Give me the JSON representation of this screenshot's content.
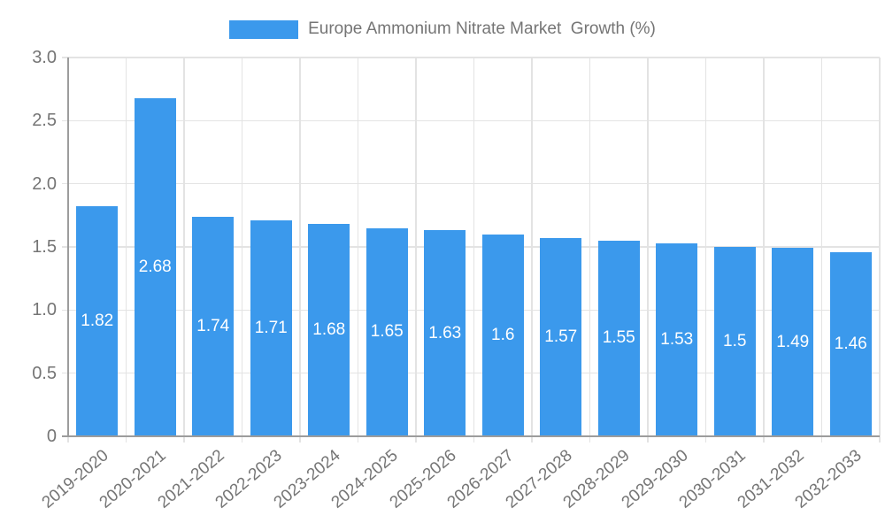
{
  "colors": {
    "bar": "#3B99EC",
    "grid": "#E3E3E3",
    "axis": "#9C9C9C",
    "text": "#757575",
    "value_label": "#FFFFFF",
    "background": "#FFFFFF"
  },
  "legend": {
    "position": "top",
    "label": "Europe Ammonium Nitrate Market  Growth (%)"
  },
  "chart_data": {
    "type": "bar",
    "title": "Europe Ammonium Nitrate Market  Growth (%)",
    "xlabel": "",
    "ylabel": "",
    "categories": [
      "2019-2020",
      "2020-2021",
      "2021-2022",
      "2022-2023",
      "2023-2024",
      "2024-2025",
      "2025-2026",
      "2026-2027",
      "2027-2028",
      "2028-2029",
      "2029-2030",
      "2030-2031",
      "2031-2032",
      "2032-2033"
    ],
    "values": [
      1.82,
      2.68,
      1.74,
      1.71,
      1.68,
      1.65,
      1.63,
      1.6,
      1.57,
      1.55,
      1.53,
      1.5,
      1.49,
      1.46
    ],
    "value_labels": [
      "1.82",
      "2.68",
      "1.74",
      "1.71",
      "1.68",
      "1.65",
      "1.63",
      "1.6",
      "1.57",
      "1.55",
      "1.53",
      "1.5",
      "1.49",
      "1.46"
    ],
    "ylim": [
      0,
      3.0
    ],
    "yticks": [
      {
        "value": 0,
        "label": "0"
      },
      {
        "value": 0.5,
        "label": "0.5"
      },
      {
        "value": 1,
        "label": "1.0"
      },
      {
        "value": 1.5,
        "label": "1.5"
      },
      {
        "value": 2,
        "label": "2.0"
      },
      {
        "value": 2.5,
        "label": "2.5"
      },
      {
        "value": 3,
        "label": "3.0"
      }
    ],
    "grid": true,
    "legend_position": "top",
    "bar_label_position": "middle",
    "x_tick_rotation": -40
  }
}
